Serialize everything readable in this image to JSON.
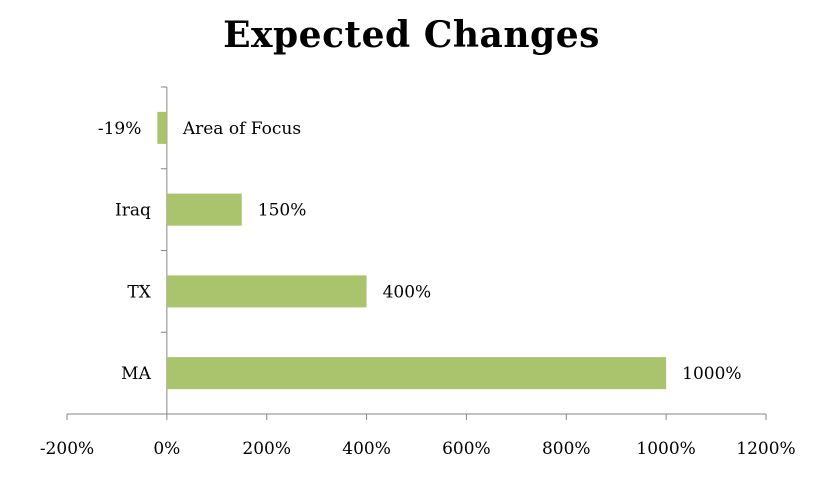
{
  "chart_data": {
    "type": "bar",
    "orientation": "horizontal",
    "title": "Expected Changes",
    "xlabel": "",
    "ylabel": "",
    "categories": [
      "-19%",
      "Iraq",
      "TX",
      "MA"
    ],
    "values": [
      -19,
      150,
      400,
      1000
    ],
    "data_labels": [
      "Area of Focus",
      "150%",
      "400%",
      "1000%"
    ],
    "xlim": [
      -200,
      1200
    ],
    "x_ticks": [
      -200,
      0,
      200,
      400,
      600,
      800,
      1000,
      1200
    ],
    "x_tick_labels": [
      "-200%",
      "0%",
      "200%",
      "400%",
      "600%",
      "800%",
      "1000%",
      "1200%"
    ],
    "grid": false,
    "legend": "none",
    "bar_color": "#A9C46C",
    "axis_color": "#868686"
  }
}
